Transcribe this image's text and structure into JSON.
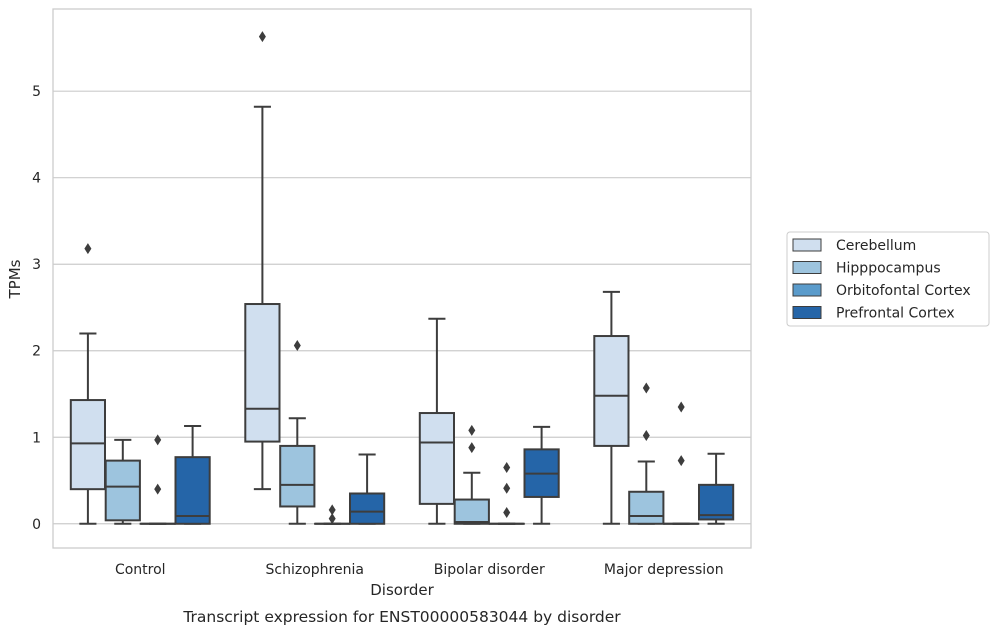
{
  "chart_data": {
    "type": "box",
    "title": "",
    "caption": "Transcript expression for ENST00000583044 by disorder",
    "xlabel": "Disorder",
    "ylabel": "TPMs",
    "ylim": [
      -0.28,
      5.95
    ],
    "yticks": [
      0,
      1,
      2,
      3,
      4,
      5
    ],
    "grid": true,
    "legend_position": "right",
    "categories": [
      "Control",
      "Schizophrenia",
      "Bipolar disorder",
      "Major depression"
    ],
    "series": [
      {
        "name": "Cerebellum",
        "color": "#d0dfef",
        "boxes": [
          {
            "whisker_low": 0.0,
            "q1": 0.4,
            "median": 0.93,
            "q3": 1.43,
            "whisker_high": 2.2,
            "outliers": [
              3.18
            ]
          },
          {
            "whisker_low": 0.4,
            "q1": 0.95,
            "median": 1.33,
            "q3": 2.54,
            "whisker_high": 4.82,
            "outliers": [
              5.63
            ]
          },
          {
            "whisker_low": 0.0,
            "q1": 0.23,
            "median": 0.94,
            "q3": 1.28,
            "whisker_high": 2.37,
            "outliers": []
          },
          {
            "whisker_low": 0.0,
            "q1": 0.9,
            "median": 1.48,
            "q3": 2.17,
            "whisker_high": 2.68,
            "outliers": []
          }
        ]
      },
      {
        "name": "Hipppocampus",
        "color": "#9dc4de",
        "boxes": [
          {
            "whisker_low": 0.0,
            "q1": 0.04,
            "median": 0.43,
            "q3": 0.73,
            "whisker_high": 0.97,
            "outliers": []
          },
          {
            "whisker_low": 0.0,
            "q1": 0.2,
            "median": 0.45,
            "q3": 0.9,
            "whisker_high": 1.22,
            "outliers": [
              2.06
            ]
          },
          {
            "whisker_low": 0.0,
            "q1": 0.0,
            "median": 0.02,
            "q3": 0.28,
            "whisker_high": 0.59,
            "outliers": [
              1.08,
              0.88
            ]
          },
          {
            "whisker_low": 0.0,
            "q1": 0.0,
            "median": 0.09,
            "q3": 0.37,
            "whisker_high": 0.72,
            "outliers": [
              1.57,
              1.02
            ]
          }
        ]
      },
      {
        "name": "Orbitofontal Cortex",
        "color": "#5a9bcb",
        "boxes": [
          {
            "whisker_low": 0.0,
            "q1": 0.0,
            "median": 0.0,
            "q3": 0.0,
            "whisker_high": 0.0,
            "outliers": [
              0.97,
              0.4
            ]
          },
          {
            "whisker_low": 0.0,
            "q1": 0.0,
            "median": 0.0,
            "q3": 0.0,
            "whisker_high": 0.0,
            "outliers": [
              0.16,
              0.06
            ]
          },
          {
            "whisker_low": 0.0,
            "q1": 0.0,
            "median": 0.0,
            "q3": 0.0,
            "whisker_high": 0.0,
            "outliers": [
              0.65,
              0.41,
              0.13
            ]
          },
          {
            "whisker_low": 0.0,
            "q1": 0.0,
            "median": 0.0,
            "q3": 0.0,
            "whisker_high": 0.0,
            "outliers": [
              1.35,
              0.73
            ]
          }
        ]
      },
      {
        "name": "Prefrontal Cortex",
        "color": "#2565a8",
        "boxes": [
          {
            "whisker_low": 0.0,
            "q1": 0.0,
            "median": 0.09,
            "q3": 0.77,
            "whisker_high": 1.13,
            "outliers": []
          },
          {
            "whisker_low": 0.0,
            "q1": 0.0,
            "median": 0.14,
            "q3": 0.35,
            "whisker_high": 0.8,
            "outliers": []
          },
          {
            "whisker_low": 0.0,
            "q1": 0.31,
            "median": 0.58,
            "q3": 0.86,
            "whisker_high": 1.12,
            "outliers": []
          },
          {
            "whisker_low": 0.0,
            "q1": 0.05,
            "median": 0.1,
            "q3": 0.45,
            "whisker_high": 0.81,
            "outliers": []
          }
        ]
      }
    ]
  }
}
